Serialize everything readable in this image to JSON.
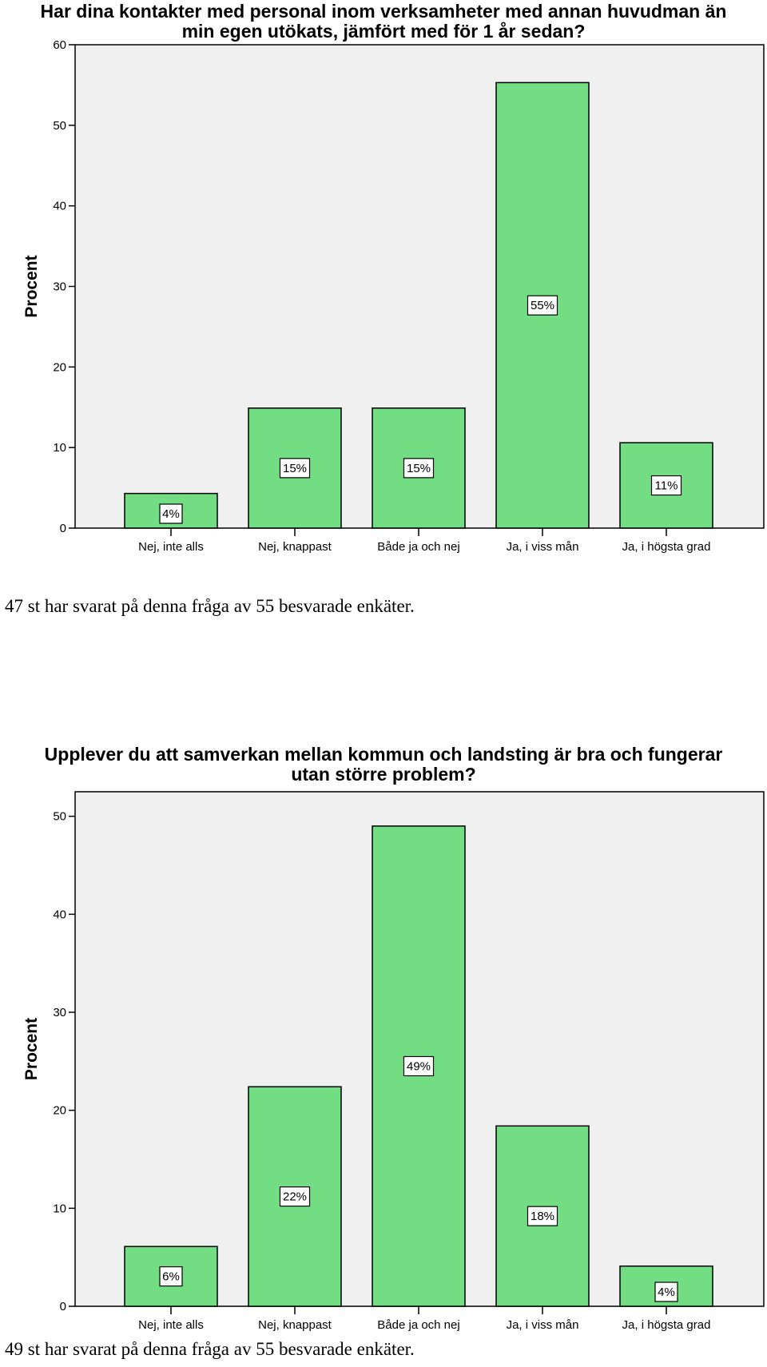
{
  "colors": {
    "bar": "#72dd83",
    "plot_bg": "#f0f0f0",
    "label_bg": "#ffffff",
    "stroke": "#000000"
  },
  "chart_data": [
    {
      "type": "bar",
      "title_lines": [
        "Har dina kontakter med personal inom verksamheter med annan huvudman än",
        "min egen utökats, jämfört med för 1 år sedan?"
      ],
      "ylabel": "Procent",
      "ylim": [
        0,
        60
      ],
      "yticks": [
        0,
        10,
        20,
        30,
        40,
        50,
        60
      ],
      "categories": [
        "Nej, inte alls",
        "Nej, knappast",
        "Både ja och nej",
        "Ja, i viss mån",
        "Ja, i högsta grad"
      ],
      "values": [
        4.3,
        14.9,
        14.9,
        55.3,
        10.6
      ],
      "data_labels": [
        "4%",
        "15%",
        "15%",
        "55%",
        "11%"
      ],
      "caption": "47 st har svarat på denna fråga av 55 besvarade enkäter."
    },
    {
      "type": "bar",
      "title_lines": [
        "Upplever du att samverkan mellan kommun och landsting är bra och fungerar",
        "utan större problem?"
      ],
      "ylabel": "Procent",
      "ylim": [
        0,
        52.5
      ],
      "yticks": [
        0,
        10,
        20,
        30,
        40,
        50
      ],
      "categories": [
        "Nej, inte alls",
        "Nej, knappast",
        "Både ja och nej",
        "Ja, i viss mån",
        "Ja, i högsta grad"
      ],
      "values": [
        6.1,
        22.4,
        49.0,
        18.4,
        4.1
      ],
      "data_labels": [
        "6%",
        "22%",
        "49%",
        "18%",
        "4%"
      ],
      "caption": "49 st har svarat på denna fråga av 55 besvarade enkäter."
    }
  ]
}
